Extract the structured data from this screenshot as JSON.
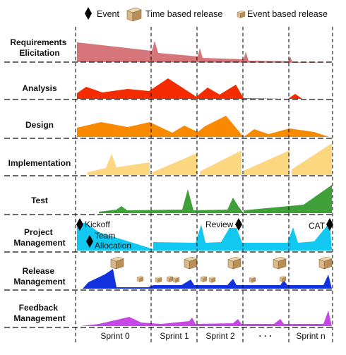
{
  "legend": {
    "event": "Event",
    "time_release": "Time based release",
    "event_release": "Event based release"
  },
  "rows": [
    {
      "key": "requirements",
      "lines": [
        "Requirements",
        "Elicitation"
      ],
      "color": "#d6767a"
    },
    {
      "key": "analysis",
      "lines": [
        "Analysis"
      ],
      "color": "#f52b00"
    },
    {
      "key": "design",
      "lines": [
        "Design"
      ],
      "color": "#f98a00"
    },
    {
      "key": "implementation",
      "lines": [
        "Implementation"
      ],
      "color": "#fdd77f"
    },
    {
      "key": "test",
      "lines": [
        "Test"
      ],
      "color": "#3f9f39"
    },
    {
      "key": "project",
      "lines": [
        "Project",
        "Management"
      ],
      "color": "#12c8f0"
    },
    {
      "key": "release",
      "lines": [
        "Release",
        "Management"
      ],
      "color": "#1231de"
    },
    {
      "key": "feedback",
      "lines": [
        "Feedback",
        "Management"
      ],
      "color": "#c447e6"
    }
  ],
  "annotations": {
    "kickoff": "Kickoff",
    "team_allocation": [
      "Team",
      "Allocation"
    ],
    "review": "Review",
    "cat": "CAT"
  },
  "sprints": [
    "Sprint 0",
    "Sprint 1",
    "Sprint 2",
    "· · ·",
    "Sprint n"
  ],
  "icons": [
    "event-diamond-icon",
    "time-based-release-crate-icon",
    "event-based-release-crate-icon"
  ]
}
